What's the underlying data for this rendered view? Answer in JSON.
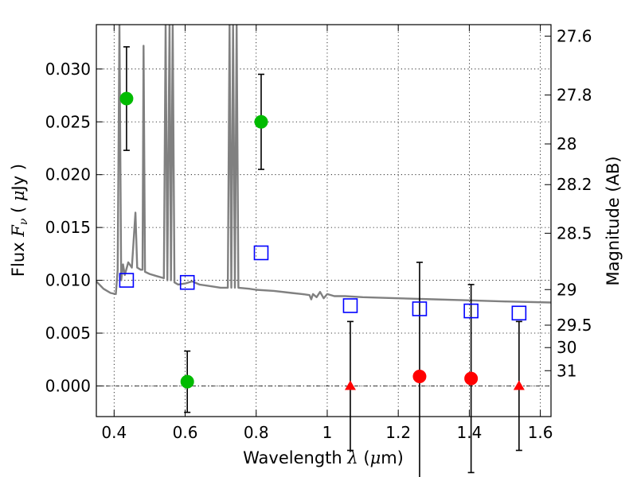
{
  "chart_data": {
    "type": "scatter",
    "xlabel": {
      "prefix": "Wavelength  ",
      "symbol": "λ",
      "suffix": " (",
      "unit_mu": "μ",
      "unit_rest": "m)"
    },
    "ylabel": {
      "prefix": "Flux  ",
      "symbol": "F",
      "subscript": "ν",
      "suffix_open": "  ( ",
      "unit_mu": "μ",
      "unit_rest": "Jy )"
    },
    "y2label": "Magnitude (AB)",
    "xlim": [
      0.35,
      1.63
    ],
    "ylim": [
      -0.0029,
      0.0342
    ],
    "grid": true,
    "x_ticks": [
      0.4,
      0.6,
      0.8,
      1.0,
      1.2,
      1.4,
      1.6
    ],
    "x_tick_labels": [
      "0.4",
      "0.6",
      "0.8",
      "1",
      "1.2",
      "1.4",
      "1.6"
    ],
    "y_ticks": [
      0.0,
      0.005,
      0.01,
      0.015,
      0.02,
      0.025,
      0.03
    ],
    "y_tick_labels": [
      "0.000",
      "0.005",
      "0.010",
      "0.015",
      "0.020",
      "0.025",
      "0.030"
    ],
    "mag_ticks": [
      27.6,
      27.8,
      28,
      28.2,
      28.5,
      29,
      29.5,
      30,
      31
    ],
    "mag_tick_labels": [
      "27.6",
      "27.8",
      "28",
      "28.2",
      "28.5",
      "29",
      "29.5",
      "30",
      "31"
    ],
    "colors": {
      "detection": "#00bb00",
      "non_detection": "#ff0000",
      "model_photometry": "#0000ff",
      "sed": "#808080",
      "errorbar": "#000000"
    },
    "series": [
      {
        "marker": "circle",
        "color": "#00bb00",
        "points": [
          {
            "x": 0.435,
            "y": 0.0272,
            "yerr": 0.0049
          },
          {
            "x": 0.606,
            "y": 0.0004,
            "yerr": 0.0029
          },
          {
            "x": 0.814,
            "y": 0.025,
            "yerr": 0.0045
          }
        ]
      },
      {
        "marker": "circle",
        "color": "#ff0000",
        "points": [
          {
            "x": 1.26,
            "y": 0.0009,
            "yerr": 0.0108
          },
          {
            "x": 1.405,
            "y": 0.0007,
            "yerr": 0.0089
          }
        ]
      },
      {
        "marker": "triangle",
        "color": "#ff0000",
        "points": [
          {
            "x": 1.065,
            "y": 0.0,
            "yerr": 0.0061
          },
          {
            "x": 1.54,
            "y": 0.0,
            "yerr": 0.0061
          }
        ]
      },
      {
        "marker": "square-open",
        "color": "#0000ff",
        "points": [
          {
            "x": 0.435,
            "y": 0.01
          },
          {
            "x": 0.606,
            "y": 0.0098
          },
          {
            "x": 0.814,
            "y": 0.0126
          },
          {
            "x": 1.065,
            "y": 0.0076
          },
          {
            "x": 1.26,
            "y": 0.0073
          },
          {
            "x": 1.405,
            "y": 0.0071
          },
          {
            "x": 1.54,
            "y": 0.0069
          }
        ]
      },
      {
        "marker": "line",
        "color": "#808080",
        "points": [
          [
            0.35,
            0.0099
          ],
          [
            0.37,
            0.0092
          ],
          [
            0.39,
            0.0088
          ],
          [
            0.405,
            0.0087
          ],
          [
            0.41,
            0.011
          ],
          [
            0.415,
            0.0342
          ],
          [
            0.42,
            0.01
          ],
          [
            0.425,
            0.0115
          ],
          [
            0.43,
            0.0105
          ],
          [
            0.44,
            0.0117
          ],
          [
            0.45,
            0.0112
          ],
          [
            0.46,
            0.0164
          ],
          [
            0.465,
            0.0112
          ],
          [
            0.475,
            0.011
          ],
          [
            0.48,
            0.011
          ],
          [
            0.483,
            0.0322
          ],
          [
            0.487,
            0.0108
          ],
          [
            0.5,
            0.0106
          ],
          [
            0.52,
            0.0104
          ],
          [
            0.54,
            0.0102
          ],
          [
            0.545,
            0.0342
          ],
          [
            0.55,
            0.01
          ],
          [
            0.556,
            0.0342
          ],
          [
            0.56,
            0.01
          ],
          [
            0.565,
            0.0342
          ],
          [
            0.57,
            0.0098
          ],
          [
            0.58,
            0.0096
          ],
          [
            0.6,
            0.0097
          ],
          [
            0.62,
            0.0099
          ],
          [
            0.64,
            0.0096
          ],
          [
            0.66,
            0.0095
          ],
          [
            0.7,
            0.0093
          ],
          [
            0.72,
            0.0093
          ],
          [
            0.725,
            0.0342
          ],
          [
            0.73,
            0.0093
          ],
          [
            0.735,
            0.0342
          ],
          [
            0.74,
            0.0093
          ],
          [
            0.745,
            0.0342
          ],
          [
            0.75,
            0.0093
          ],
          [
            0.78,
            0.0092
          ],
          [
            0.8,
            0.0091
          ],
          [
            0.85,
            0.009
          ],
          [
            0.9,
            0.0088
          ],
          [
            0.93,
            0.0087
          ],
          [
            0.95,
            0.0086
          ],
          [
            0.955,
            0.0082
          ],
          [
            0.96,
            0.0087
          ],
          [
            0.97,
            0.0084
          ],
          [
            0.98,
            0.0089
          ],
          [
            0.99,
            0.0083
          ],
          [
            1.0,
            0.0087
          ],
          [
            1.02,
            0.0085
          ],
          [
            1.05,
            0.0085
          ],
          [
            1.1,
            0.0084
          ],
          [
            1.2,
            0.0083
          ],
          [
            1.3,
            0.0082
          ],
          [
            1.4,
            0.0081
          ],
          [
            1.5,
            0.008
          ],
          [
            1.63,
            0.0079
          ]
        ]
      }
    ]
  }
}
